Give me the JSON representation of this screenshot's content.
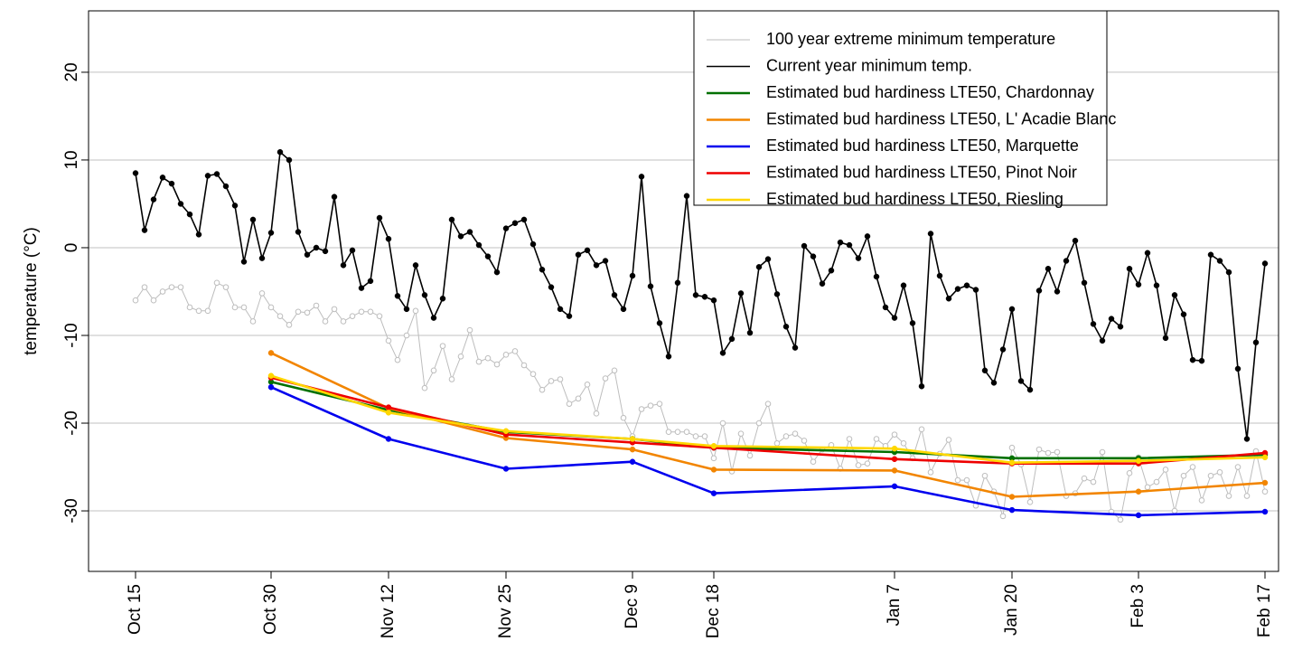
{
  "chart_data": {
    "type": "line",
    "ylabel": "temperature (°C)",
    "xlim": [
      -5.2,
      126.5
    ],
    "ylim": [
      -36.9,
      27.0
    ],
    "xticks": [
      {
        "value": 0,
        "label": "Oct 15"
      },
      {
        "value": 15,
        "label": "Oct 30"
      },
      {
        "value": 28,
        "label": "Nov 12"
      },
      {
        "value": 41,
        "label": "Nov 25"
      },
      {
        "value": 55,
        "label": "Dec 9"
      },
      {
        "value": 64,
        "label": "Dec 18"
      },
      {
        "value": 84,
        "label": "Jan 7"
      },
      {
        "value": 97,
        "label": "Jan 20"
      },
      {
        "value": 111,
        "label": "Feb 3"
      },
      {
        "value": 125,
        "label": "Feb 17"
      }
    ],
    "yticks": [
      -30,
      -20,
      -10,
      0,
      10,
      20
    ],
    "grid": true,
    "legend": "top-right",
    "series": [
      {
        "name": "100 year extreme minimum temperature",
        "color": "#bdbdbd",
        "marker": "open",
        "linewidth": 1,
        "x": [
          0,
          1,
          2,
          3,
          4,
          5,
          6,
          7,
          8,
          9,
          10,
          11,
          12,
          13,
          14,
          15,
          16,
          17,
          18,
          19,
          20,
          21,
          22,
          23,
          24,
          25,
          26,
          27,
          28,
          29,
          30,
          31,
          32,
          33,
          34,
          35,
          36,
          37,
          38,
          39,
          40,
          41,
          42,
          43,
          44,
          45,
          46,
          47,
          48,
          49,
          50,
          51,
          52,
          53,
          54,
          55,
          56,
          57,
          58,
          59,
          60,
          61,
          62,
          63,
          64,
          65,
          66,
          67,
          68,
          69,
          70,
          71,
          72,
          73,
          74,
          75,
          76,
          77,
          78,
          79,
          80,
          81,
          82,
          83,
          84,
          85,
          86,
          87,
          88,
          89,
          90,
          91,
          92,
          93,
          94,
          95,
          96,
          97,
          98,
          99,
          100,
          101,
          102,
          103,
          104,
          105,
          106,
          107,
          108,
          109,
          110,
          111,
          112,
          113,
          114,
          115,
          116,
          117,
          118,
          119,
          120,
          121,
          122,
          123,
          124,
          125
        ],
        "values": [
          -6,
          -4.5,
          -6,
          -5,
          -4.5,
          -4.5,
          -6.8,
          -7.2,
          -7.2,
          -4,
          -4.5,
          -6.8,
          -6.8,
          -8.4,
          -5.2,
          -6.8,
          -7.8,
          -8.8,
          -7.3,
          -7.4,
          -6.6,
          -8.4,
          -7,
          -8.4,
          -7.8,
          -7.3,
          -7.3,
          -7.8,
          -10.6,
          -12.8,
          -10,
          -7.2,
          -16,
          -14,
          -11.2,
          -15,
          -12.4,
          -9.4,
          -13,
          -12.6,
          -13.3,
          -12.2,
          -11.8,
          -13.4,
          -14.4,
          -16.2,
          -15.2,
          -15,
          -17.8,
          -17.2,
          -15.6,
          -18.9,
          -14.9,
          -14,
          -19.4,
          -21.5,
          -18.4,
          -18,
          -17.8,
          -21,
          -21,
          -21,
          -21.5,
          -21.5,
          -24,
          -20,
          -25.5,
          -21.2,
          -23.7,
          -20,
          -17.8,
          -22.3,
          -21.5,
          -21.2,
          -22,
          -24.4,
          -23,
          -22.5,
          -25.2,
          -21.8,
          -24.8,
          -24.6,
          -21.8,
          -22.6,
          -21.3,
          -22.3,
          -24,
          -20.7,
          -25.6,
          -23.5,
          -21.9,
          -26.5,
          -26.5,
          -29.4,
          -26,
          -27.8,
          -30.6,
          -22.8,
          -24.7,
          -29,
          -23,
          -23.4,
          -23.3,
          -28.3,
          -28,
          -26.3,
          -26.7,
          -23.3,
          -30.1,
          -31,
          -25.7,
          -23.9,
          -27.3,
          -26.7,
          -25.3,
          -30,
          -26,
          -25,
          -28.8,
          -26,
          -25.6,
          -28.3,
          -25,
          -28.3,
          -23.2,
          -27.8
        ]
      },
      {
        "name": "Current year minimum temp.",
        "color": "#000000",
        "marker": "filled",
        "linewidth": 1.6,
        "x": [
          0,
          1,
          2,
          3,
          4,
          5,
          6,
          7,
          8,
          9,
          10,
          11,
          12,
          13,
          14,
          15,
          16,
          17,
          18,
          19,
          20,
          21,
          22,
          23,
          24,
          25,
          26,
          27,
          28,
          29,
          30,
          31,
          32,
          33,
          34,
          35,
          36,
          37,
          38,
          39,
          40,
          41,
          42,
          43,
          44,
          45,
          46,
          47,
          48,
          49,
          50,
          51,
          52,
          53,
          54,
          55,
          56,
          57,
          58,
          59,
          60,
          61,
          62,
          63,
          64,
          65,
          66,
          67,
          68,
          69,
          70,
          71,
          72,
          73,
          74,
          75,
          76,
          77,
          78,
          79,
          80,
          81,
          82,
          83,
          84,
          85,
          86,
          87,
          88,
          89,
          90,
          91,
          92,
          93,
          94,
          95,
          96,
          97,
          98,
          99,
          100,
          101,
          102,
          103,
          104,
          105,
          106,
          107,
          108,
          109,
          110,
          111,
          112,
          113,
          114,
          115,
          116,
          117,
          118,
          119,
          120,
          121,
          122,
          123,
          124,
          125
        ],
        "values": [
          8.5,
          2,
          5.5,
          8,
          7.3,
          5,
          3.8,
          1.5,
          8.2,
          8.4,
          7,
          4.8,
          -1.6,
          3.2,
          -1.2,
          1.7,
          10.9,
          10,
          1.8,
          -0.8,
          0,
          -0.4,
          5.8,
          -2,
          -0.3,
          -4.6,
          -3.8,
          3.4,
          1,
          -5.5,
          -7,
          -2,
          -5.4,
          -8,
          -5.8,
          3.2,
          1.3,
          1.8,
          0.3,
          -1,
          -2.8,
          2.2,
          2.8,
          3.2,
          0.4,
          -2.5,
          -4.5,
          -7,
          -7.8,
          -0.8,
          -0.3,
          -2,
          -1.5,
          -5.4,
          -7,
          -3.2,
          8.1,
          -4.4,
          -8.6,
          -12.4,
          -4,
          5.9,
          -5.4,
          -5.6,
          -6,
          -12,
          -10.4,
          -5.2,
          -9.7,
          -2.2,
          -1.3,
          -5.3,
          -9,
          -11.4,
          0.2,
          -1,
          -4.1,
          -2.6,
          0.6,
          0.3,
          -1.2,
          1.3,
          -3.3,
          -6.8,
          -8,
          -4.3,
          -8.6,
          -15.8,
          1.6,
          -3.2,
          -5.8,
          -4.7,
          -4.3,
          -4.8,
          -14,
          -15.4,
          -11.6,
          -7,
          -15.2,
          -16.2,
          -4.9,
          -2.4,
          -5,
          -1.5,
          0.8,
          -4,
          -8.7,
          -10.6,
          -8.1,
          -9,
          -2.4,
          -4.2,
          -0.6,
          -4.3,
          -10.3,
          -5.4,
          -7.6,
          -12.8,
          -12.9,
          -0.8,
          -1.5,
          -2.8,
          -13.8,
          -21.8,
          -10.8,
          -1.8
        ]
      },
      {
        "name": "Estimated bud hardiness LTE50, Chardonnay",
        "color": "#007000",
        "marker": "filled",
        "linewidth": 2.6,
        "x": [
          15,
          28,
          41,
          55,
          64,
          84,
          97,
          111,
          125
        ],
        "values": [
          -15.3,
          -18.5,
          -21,
          -21.8,
          -22.8,
          -23.3,
          -24,
          -24,
          -23.6
        ]
      },
      {
        "name": "Estimated bud hardiness LTE50, L' Acadie Blanc",
        "color": "#f28500",
        "marker": "filled",
        "linewidth": 2.6,
        "x": [
          15,
          28,
          41,
          55,
          64,
          84,
          97,
          111,
          125
        ],
        "values": [
          -12,
          -18.3,
          -21.7,
          -23,
          -25.3,
          -25.4,
          -28.4,
          -27.8,
          -26.8
        ]
      },
      {
        "name": "Estimated bud hardiness LTE50, Marquette",
        "color": "#0000ee",
        "marker": "filled",
        "linewidth": 2.6,
        "x": [
          15,
          28,
          41,
          55,
          64,
          84,
          97,
          111,
          125
        ],
        "values": [
          -15.9,
          -21.8,
          -25.2,
          -24.4,
          -28,
          -27.2,
          -29.9,
          -30.5,
          -30.1
        ]
      },
      {
        "name": "Estimated bud hardiness LTE50, Pinot Noir",
        "color": "#ee0000",
        "marker": "filled",
        "linewidth": 2.6,
        "x": [
          15,
          28,
          41,
          55,
          64,
          84,
          97,
          111,
          125
        ],
        "values": [
          -14.8,
          -18.2,
          -21.3,
          -22.2,
          -22.8,
          -24.1,
          -24.6,
          -24.6,
          -23.4
        ]
      },
      {
        "name": "Estimated bud hardiness LTE50, Riesling",
        "color": "#ffd700",
        "marker": "filled",
        "linewidth": 2.6,
        "x": [
          15,
          28,
          41,
          55,
          64,
          84,
          97,
          111,
          125
        ],
        "values": [
          -14.6,
          -18.8,
          -20.9,
          -21.8,
          -22.6,
          -22.9,
          -24.5,
          -24.3,
          -23.9
        ]
      }
    ]
  }
}
